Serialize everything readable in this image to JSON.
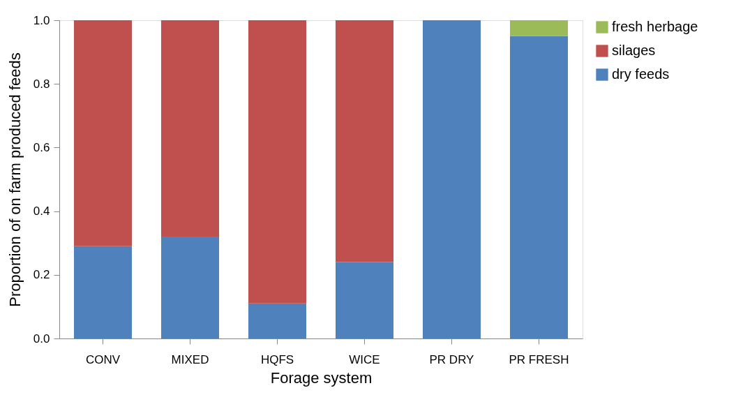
{
  "chart_data": {
    "type": "bar",
    "stacked": true,
    "xlabel": "Forage system",
    "ylabel": "Proportion of on farm produced feeds",
    "categories": [
      "CONV",
      "MIXED",
      "HQFS",
      "WICE",
      "PR DRY",
      "PR FRESH"
    ],
    "series": [
      {
        "name": "dry feeds",
        "color": "#4f81bd",
        "values": [
          0.29,
          0.32,
          0.11,
          0.24,
          1.0,
          0.95
        ]
      },
      {
        "name": "silages",
        "color": "#c0504d",
        "values": [
          0.71,
          0.68,
          0.89,
          0.76,
          0,
          0
        ]
      },
      {
        "name": "fresh herbage",
        "color": "#9bbb59",
        "values": [
          0,
          0,
          0,
          0,
          0,
          0.05
        ]
      }
    ],
    "ylim": [
      0,
      1.0
    ],
    "yticks": [
      {
        "value": 0,
        "label": "0.0"
      },
      {
        "value": 0.2,
        "label": "0.2"
      },
      {
        "value": 0.4,
        "label": "0.4"
      },
      {
        "value": 0.6,
        "label": "0.6"
      },
      {
        "value": 0.8,
        "label": "0.8"
      },
      {
        "value": 1.0,
        "label": "1.0"
      }
    ],
    "grid": false,
    "legend": "right"
  }
}
